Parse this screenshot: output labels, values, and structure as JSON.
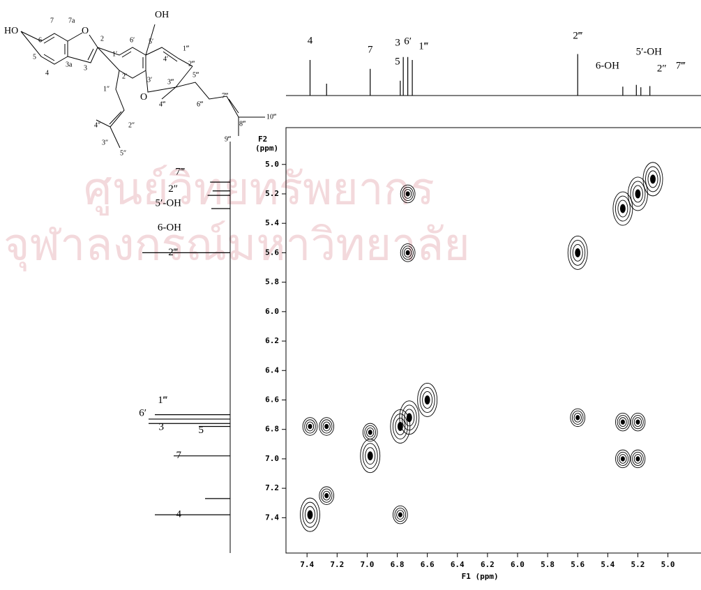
{
  "watermark": [
    "ศูนย์วิทยทรัพยากร",
    "จุฬาลงกรณ์มหาวิทยาลัย"
  ],
  "structure": {
    "atoms": [
      "HO",
      "7",
      "7a",
      "O",
      "2",
      "6",
      "5",
      "4",
      "3a",
      "3",
      "1′",
      "6′",
      "OH",
      "5′",
      "4′",
      "1‴",
      "2‴",
      "2′",
      "3′",
      "O",
      "3‴",
      "5‴",
      "4‴",
      "1″",
      "6‴",
      "7‴",
      "8‴",
      "10‴",
      "9‴",
      "2″",
      "4″",
      "3″",
      "5″"
    ]
  },
  "chart_data": {
    "type": "cosy",
    "xlabel": "F1 (ppm)",
    "ylabel": [
      "F2",
      "(ppm)"
    ],
    "xlim": [
      7.54,
      4.78
    ],
    "ylim": [
      4.75,
      7.64
    ],
    "xticks": [
      7.4,
      7.2,
      {
        "value": 7,
        "label": "7.0"
      },
      6.8,
      6.6,
      6.4,
      6.2,
      {
        "value": 6,
        "label": "6.0"
      },
      5.8,
      5.6,
      5.4,
      5.2,
      {
        "value": 5,
        "label": "5.0"
      }
    ],
    "yticks": [
      {
        "value": 5,
        "label": "5.0"
      },
      5.2,
      5.4,
      5.6,
      5.8,
      {
        "value": 6,
        "label": "6.0"
      },
      6.2,
      6.4,
      6.6,
      6.8,
      {
        "value": 7,
        "label": "7.0"
      },
      7.2,
      7.4
    ],
    "projection": {
      "labels": [
        "4",
        null,
        "7",
        "5",
        "3",
        "6′",
        "1‴",
        "2‴",
        "6-OH",
        "5′-OH",
        "2″",
        "7‴"
      ],
      "shifts": [
        7.38,
        7.27,
        6.98,
        6.78,
        6.76,
        6.73,
        6.7,
        5.6,
        5.3,
        5.21,
        5.18,
        5.12
      ],
      "intensities": [
        60,
        20,
        45,
        25,
        65,
        65,
        60,
        70,
        15,
        18,
        14,
        16
      ]
    },
    "peaks": {
      "x": [
        7.38,
        7.27,
        6.98,
        6.78,
        6.72,
        6.6,
        5.6,
        5.3,
        5.2,
        5.1,
        7.38,
        6.78,
        6.73,
        6.73,
        5.6,
        5.3,
        5.2,
        5.3,
        5.2,
        6.98,
        7.27
      ],
      "y": [
        7.38,
        7.25,
        6.98,
        6.78,
        6.72,
        6.6,
        5.6,
        5.3,
        5.2,
        5.1,
        6.78,
        7.38,
        5.6,
        5.2,
        6.72,
        6.75,
        6.75,
        7.0,
        7.0,
        6.82,
        6.78
      ]
    }
  }
}
